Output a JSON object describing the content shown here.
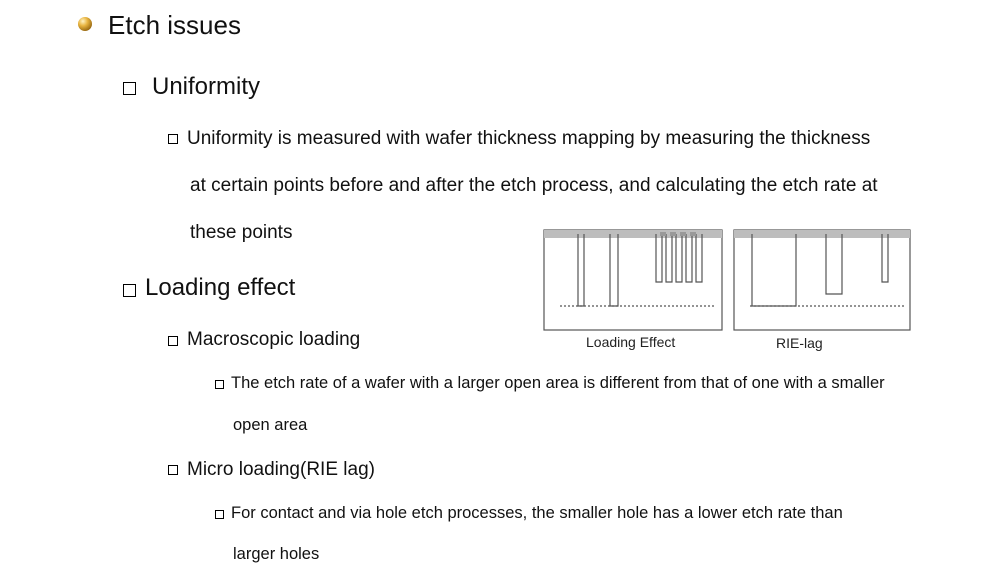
{
  "heading": {
    "title": "Etch issues",
    "icon": "ball-bullet-icon",
    "color": "#c89a2c"
  },
  "uniformity": {
    "title": "Uniformity",
    "body_lines": [
      "Uniformity is measured with wafer thickness mapping by measuring the thickness",
      "at certain points before and after the etch process, and calculating the etch rate at",
      "these points"
    ]
  },
  "loading_effect": {
    "title": "Loading effect",
    "macro": {
      "title": "Macroscopic loading",
      "body_lines": [
        "The etch rate of a wafer with a larger open area is different from that of one with a smaller",
        "open area"
      ]
    },
    "micro": {
      "title": "Micro loading(RIE lag)",
      "body_lines": [
        "For contact and via hole etch processes, the smaller hole has a lower etch rate than",
        "larger holes"
      ]
    }
  },
  "figure": {
    "left_label": "Loading Effect",
    "right_label": "RIE-lag"
  }
}
